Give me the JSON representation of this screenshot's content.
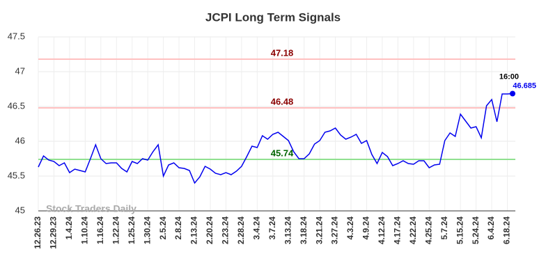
{
  "chart_data": {
    "type": "line",
    "title": "JCPI Long Term Signals",
    "categories": [
      "12.26.23",
      null,
      null,
      "12.29.23",
      null,
      null,
      "1.4.24",
      null,
      null,
      "1.10.24",
      null,
      null,
      "1.16.24",
      null,
      null,
      "1.22.24",
      null,
      null,
      "1.25.24",
      null,
      null,
      "1.30.24",
      null,
      null,
      "2.5.24",
      null,
      null,
      "2.8.24",
      null,
      null,
      "2.13.24",
      null,
      null,
      "2.20.24",
      null,
      null,
      "2.23.24",
      null,
      null,
      "2.28.24",
      null,
      null,
      "3.4.24",
      null,
      null,
      "3.7.24",
      null,
      null,
      "3.13.24",
      null,
      null,
      "3.18.24",
      null,
      null,
      "3.21.24",
      null,
      null,
      "3.27.24",
      null,
      null,
      "4.3.24",
      null,
      null,
      "4.9.24",
      null,
      null,
      "4.12.24",
      null,
      null,
      "4.17.24",
      null,
      null,
      "4.22.24",
      null,
      null,
      "4.25.24",
      null,
      null,
      "5.7.24",
      null,
      null,
      "5.15.24",
      null,
      null,
      "5.24.24",
      null,
      null,
      "6.4.24",
      null,
      null,
      "6.18.24",
      null
    ],
    "values": [
      45.63,
      45.79,
      45.73,
      45.71,
      45.65,
      45.69,
      45.55,
      45.6,
      45.58,
      45.56,
      45.75,
      45.95,
      45.75,
      45.68,
      45.69,
      45.69,
      45.61,
      45.56,
      45.71,
      45.68,
      45.75,
      45.73,
      45.85,
      45.95,
      45.5,
      45.66,
      45.69,
      45.62,
      45.61,
      45.58,
      45.4,
      45.49,
      45.64,
      45.6,
      45.54,
      45.52,
      45.55,
      45.52,
      45.57,
      45.64,
      45.78,
      45.93,
      45.91,
      46.08,
      46.03,
      46.1,
      46.13,
      46.07,
      46.01,
      45.85,
      45.75,
      45.75,
      45.82,
      45.96,
      46.01,
      46.13,
      46.15,
      46.19,
      46.09,
      46.03,
      46.06,
      46.1,
      45.97,
      46.01,
      45.81,
      45.68,
      45.84,
      45.78,
      45.65,
      45.68,
      45.72,
      45.68,
      45.67,
      45.72,
      45.72,
      45.62,
      45.66,
      45.67,
      46.01,
      46.12,
      46.07,
      46.39,
      46.29,
      46.19,
      46.21,
      46.05,
      46.51,
      46.6,
      46.28,
      46.68,
      46.68,
      46.685
    ],
    "color": "#0000ee",
    "ylim": [
      45,
      47.5
    ],
    "yticks": [
      45,
      45.5,
      46,
      46.5,
      47,
      47.5
    ],
    "grid": true,
    "hlines": [
      {
        "value": 47.18,
        "color": "#ffc0c0",
        "label_color": "#8b0000"
      },
      {
        "value": 46.48,
        "color": "#ffc0c0",
        "label_color": "#8b0000"
      },
      {
        "value": 45.74,
        "color": "#90e090",
        "label_color": "#006400"
      }
    ],
    "last_time": "16:00",
    "watermark": "Stock Traders Daily"
  }
}
